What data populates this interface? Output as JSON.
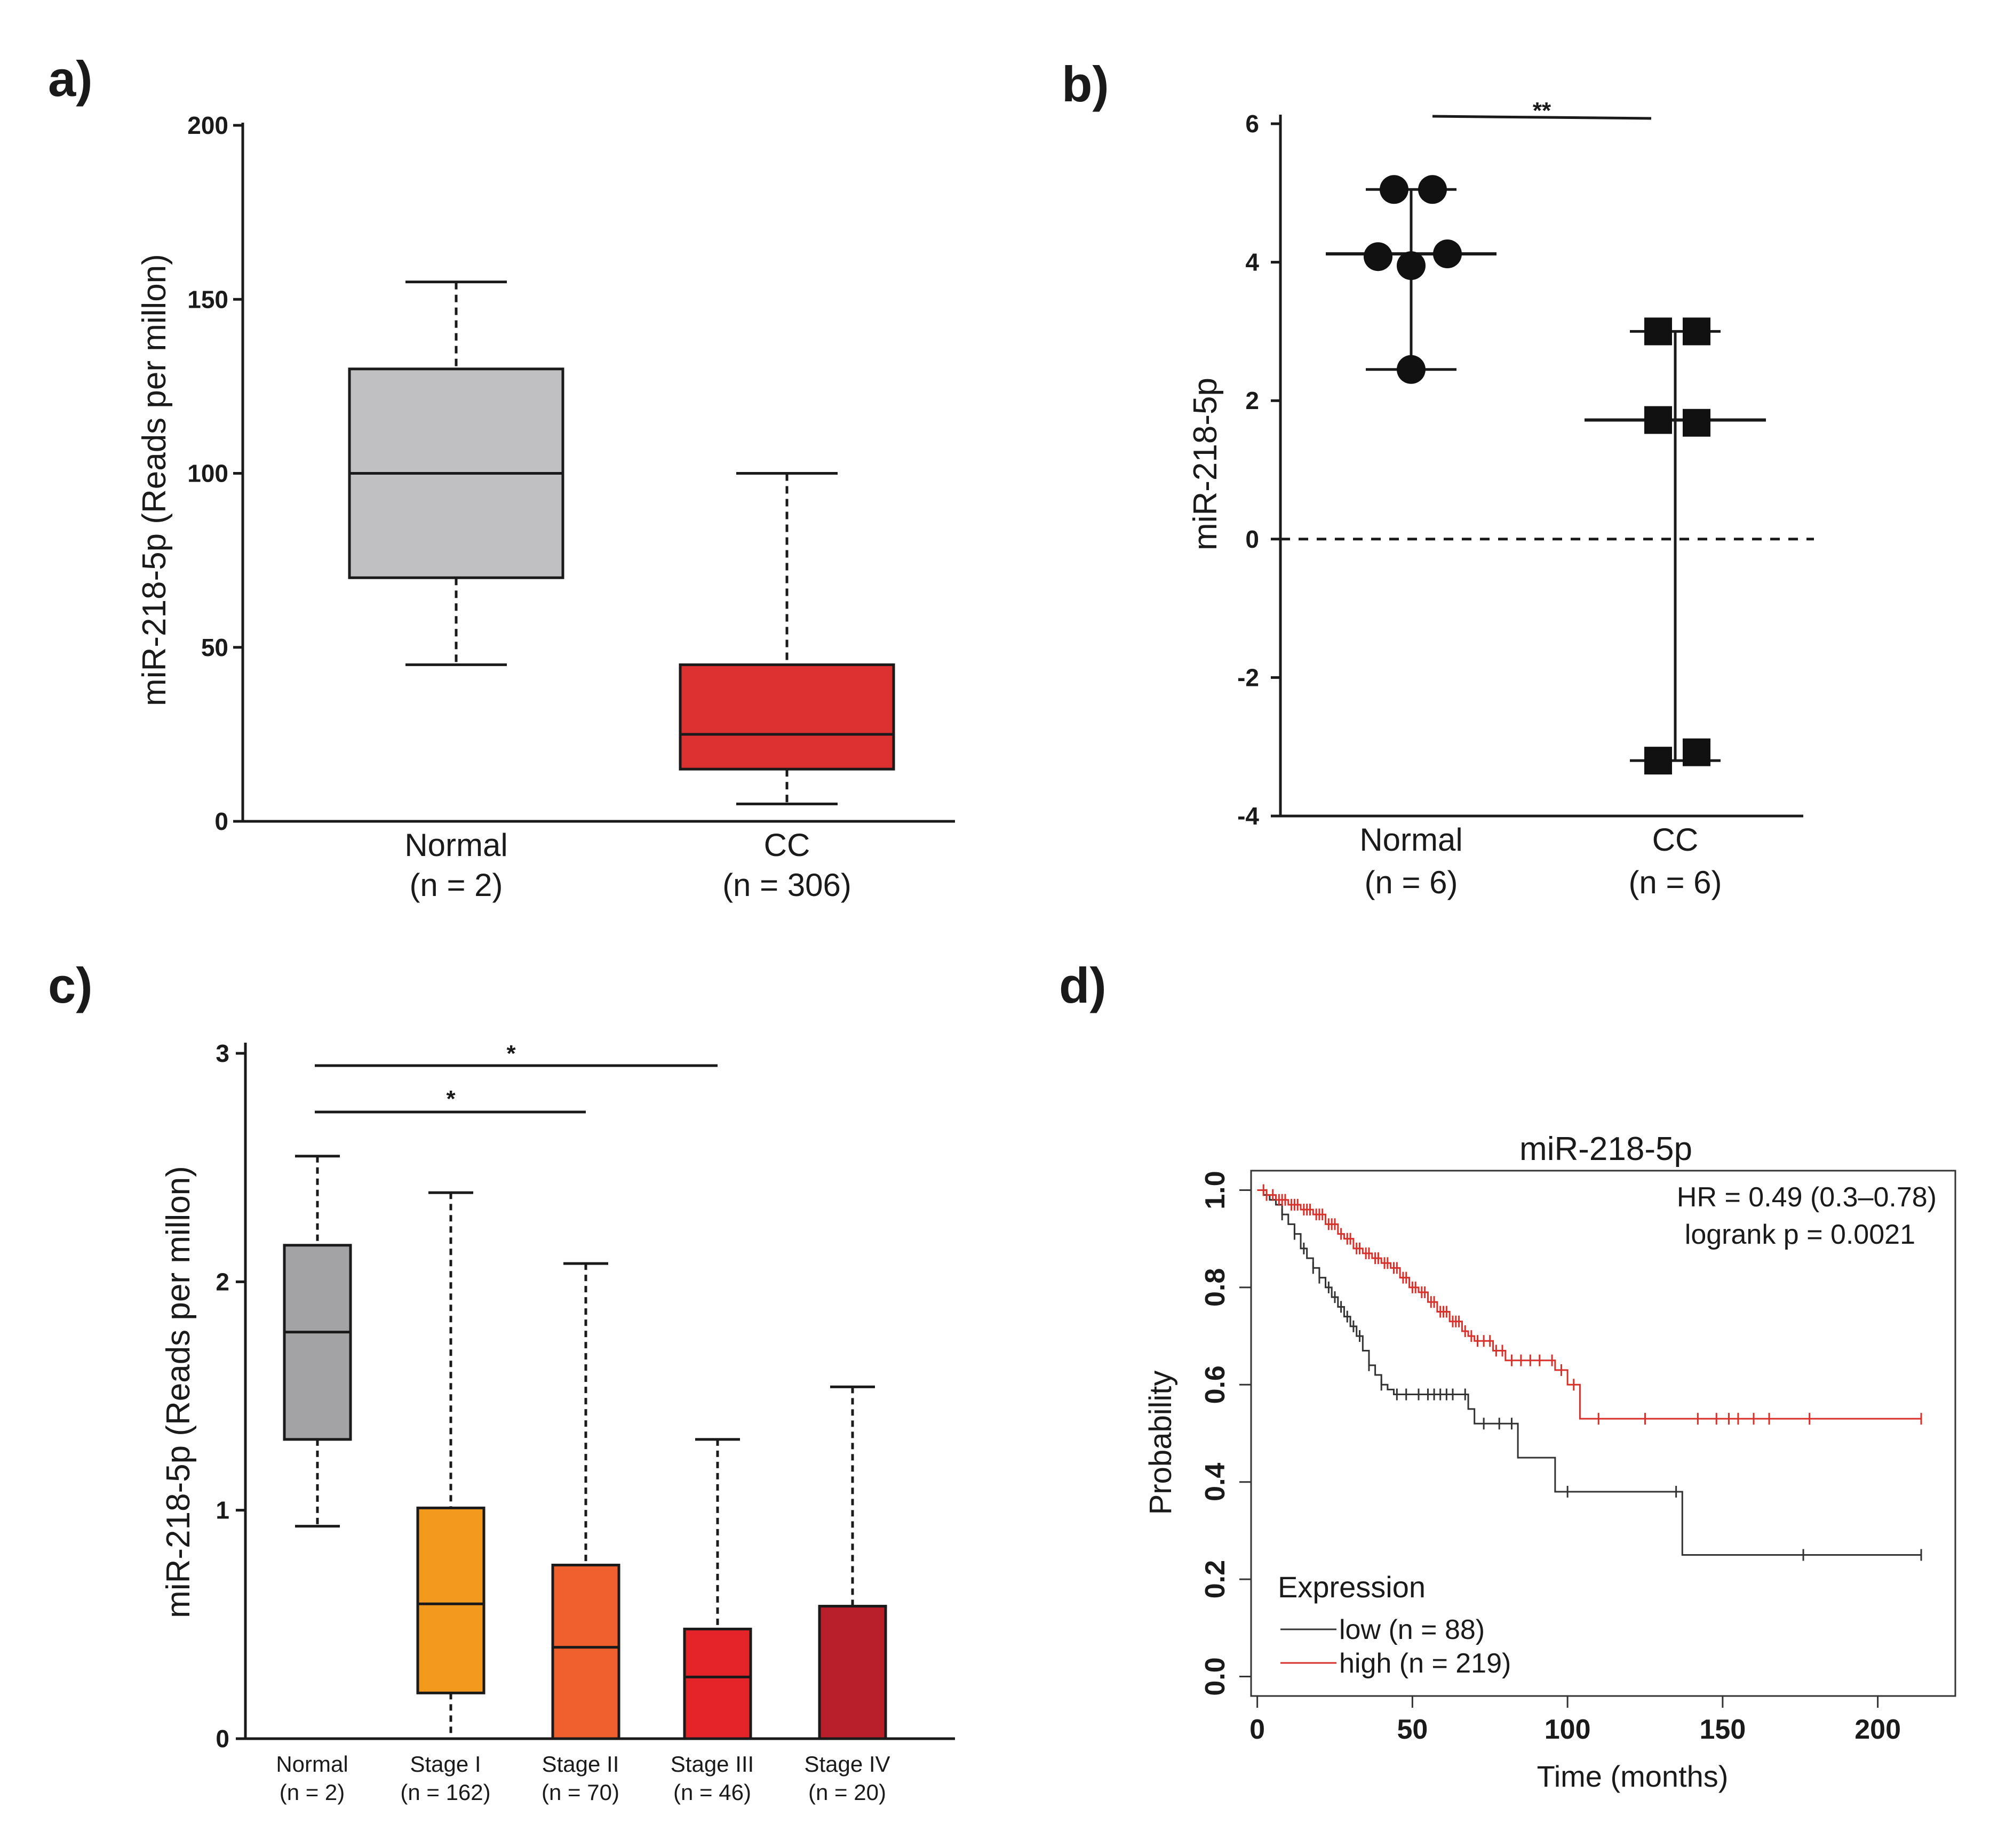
{
  "chart_data": [
    {
      "panel": "a)",
      "type": "box",
      "ylabel": "miR-218-5p (Reads per millon)",
      "ylim": [
        0,
        200
      ],
      "yticks": [
        0,
        50,
        100,
        150,
        200
      ],
      "categories": [
        {
          "name": "Normal",
          "n": "(n = 2)",
          "color": "#c0c0c2",
          "min": 45,
          "q1": 70,
          "median": 100,
          "q3": 130,
          "max": 155
        },
        {
          "name": "CC",
          "n": "(n = 306)",
          "color": "#dd3030",
          "min": 5,
          "q1": 15,
          "median": 25,
          "q3": 45,
          "max": 100
        }
      ]
    },
    {
      "panel": "b)",
      "type": "scatter",
      "ylabel": "miR-218-5p",
      "ylim": [
        -4,
        6
      ],
      "yticks": [
        -4,
        -2,
        0,
        2,
        4,
        6
      ],
      "reference_line": 0,
      "significance": "**",
      "categories": [
        {
          "name": "Normal",
          "n": "(n = 6)",
          "marker": "circle",
          "points": [
            5.05,
            5.05,
            4.08,
            4.12,
            3.95,
            2.45
          ],
          "median": 4.12,
          "min": 2.45,
          "max": 5.05
        },
        {
          "name": "CC",
          "n": "(n = 6)",
          "marker": "square",
          "points": [
            3.0,
            3.0,
            1.72,
            1.68,
            -3.2,
            -3.08
          ],
          "median": 1.72,
          "min": -3.2,
          "max": 3.0
        }
      ]
    },
    {
      "panel": "c)",
      "type": "box",
      "ylabel": "miR-218-5p (Reads per millon)",
      "ylim": [
        0,
        3
      ],
      "yticks": [
        0,
        1,
        2,
        3
      ],
      "significance": [
        {
          "from": "Normal",
          "to": "Stage III",
          "label": "*"
        },
        {
          "from": "Normal",
          "to": "Stage II",
          "label": "*"
        }
      ],
      "categories": [
        {
          "name": "Normal",
          "n": "(n = 2)",
          "color": "#a3a3a5",
          "min": 0.93,
          "q1": 1.31,
          "median": 1.78,
          "q3": 2.16,
          "max": 2.55
        },
        {
          "name": "Stage I",
          "n": "(n = 162)",
          "color": "#f39a1e",
          "min": 0.0,
          "q1": 0.2,
          "median": 0.59,
          "q3": 1.01,
          "max": 2.39
        },
        {
          "name": "Stage II",
          "n": "(n = 70)",
          "color": "#f0602e",
          "min": 0.0,
          "q1": 0.0,
          "median": 0.4,
          "q3": 0.76,
          "max": 2.08
        },
        {
          "name": "Stage III",
          "n": "(n = 46)",
          "color": "#e5242a",
          "min": 0.0,
          "q1": 0.0,
          "median": 0.27,
          "q3": 0.48,
          "max": 1.31
        },
        {
          "name": "Stage IV",
          "n": "(n = 20)",
          "color": "#b81f2a",
          "min": 0.0,
          "q1": 0.0,
          "median": 0.0,
          "q3": 0.58,
          "max": 1.54
        }
      ]
    },
    {
      "panel": "d)",
      "type": "line",
      "title": "miR-218-5p",
      "xlabel": "Time (months)",
      "ylabel": "Probability",
      "xlim": [
        -2,
        225
      ],
      "ylim": [
        -0.04,
        1.04
      ],
      "xticks": [
        0,
        50,
        100,
        150,
        200
      ],
      "yticks": [
        "0.0",
        "0.2",
        "0.4",
        "0.6",
        "0.8",
        "1.0"
      ],
      "annotations": [
        "HR = 0.49 (0.3–0.78)",
        "logrank p = 0.0021"
      ],
      "legend_title": "Expression",
      "series": [
        {
          "name": "low (n = 88)",
          "color": "#333333",
          "steps": [
            [
              0,
              1.0
            ],
            [
              2,
              0.99
            ],
            [
              4,
              0.98
            ],
            [
              6,
              0.97
            ],
            [
              8,
              0.95
            ],
            [
              10,
              0.93
            ],
            [
              12,
              0.91
            ],
            [
              14,
              0.88
            ],
            [
              16,
              0.86
            ],
            [
              18,
              0.84
            ],
            [
              20,
              0.82
            ],
            [
              22,
              0.8
            ],
            [
              24,
              0.78
            ],
            [
              26,
              0.76
            ],
            [
              28,
              0.74
            ],
            [
              30,
              0.72
            ],
            [
              32,
              0.7
            ],
            [
              34,
              0.67
            ],
            [
              36,
              0.64
            ],
            [
              38,
              0.62
            ],
            [
              40,
              0.6
            ],
            [
              42,
              0.59
            ],
            [
              44,
              0.58
            ],
            [
              68,
              0.55
            ],
            [
              70,
              0.52
            ],
            [
              84,
              0.45
            ],
            [
              96,
              0.38
            ],
            [
              137,
              0.25
            ],
            [
              214,
              0.25
            ]
          ],
          "censor": [
            8,
            12,
            15,
            18,
            20,
            23,
            25,
            27,
            29,
            31,
            33,
            36,
            40,
            45,
            48,
            52,
            55,
            57,
            59,
            61,
            63,
            67,
            73,
            78,
            82,
            100,
            135,
            176,
            214
          ]
        },
        {
          "name": "high (n = 219)",
          "color": "#d8302a",
          "steps": [
            [
              0,
              1.0
            ],
            [
              3,
              0.99
            ],
            [
              6,
              0.98
            ],
            [
              10,
              0.97
            ],
            [
              14,
              0.96
            ],
            [
              18,
              0.95
            ],
            [
              22,
              0.93
            ],
            [
              26,
              0.91
            ],
            [
              28,
              0.9
            ],
            [
              31,
              0.88
            ],
            [
              34,
              0.87
            ],
            [
              37,
              0.86
            ],
            [
              40,
              0.85
            ],
            [
              43,
              0.84
            ],
            [
              46,
              0.82
            ],
            [
              49,
              0.8
            ],
            [
              52,
              0.79
            ],
            [
              55,
              0.77
            ],
            [
              58,
              0.75
            ],
            [
              62,
              0.73
            ],
            [
              66,
              0.71
            ],
            [
              68,
              0.7
            ],
            [
              70,
              0.69
            ],
            [
              76,
              0.67
            ],
            [
              80,
              0.65
            ],
            [
              96,
              0.63
            ],
            [
              100,
              0.6
            ],
            [
              104,
              0.53
            ],
            [
              214,
              0.53
            ]
          ],
          "censor": [
            2,
            3,
            5,
            7,
            8,
            9,
            11,
            12,
            13,
            15,
            16,
            17,
            19,
            20,
            21,
            23,
            24,
            25,
            27,
            29,
            30,
            32,
            33,
            35,
            36,
            38,
            39,
            41,
            42,
            44,
            45,
            47,
            48,
            50,
            51,
            53,
            54,
            56,
            57,
            59,
            60,
            61,
            63,
            64,
            65,
            67,
            69,
            71,
            73,
            75,
            77,
            79,
            82,
            85,
            88,
            91,
            95,
            98,
            102,
            110,
            125,
            142,
            148,
            152,
            155,
            160,
            165,
            178,
            214
          ]
        }
      ]
    }
  ]
}
